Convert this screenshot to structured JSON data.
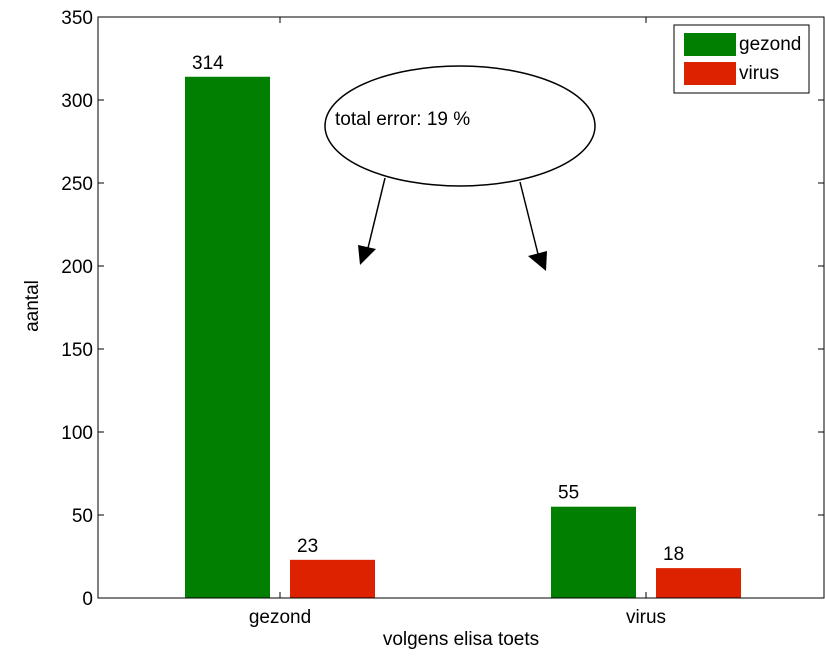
{
  "chart_data": {
    "type": "bar",
    "categories": [
      "gezond",
      "virus"
    ],
    "series": [
      {
        "name": "gezond",
        "values": [
          314,
          55
        ],
        "color": "#007f00"
      },
      {
        "name": "virus",
        "values": [
          23,
          18
        ],
        "color": "#dd2200"
      }
    ],
    "xlabel": "volgens elisa toets",
    "ylabel": "aantal",
    "ylim": [
      0,
      350
    ],
    "yticks": [
      0,
      50,
      100,
      150,
      200,
      250,
      300,
      350
    ],
    "grid": false,
    "legend_position": "top-right",
    "annotation": {
      "text": "total error: 19 %",
      "shape": "ellipse with two arrows pointing down"
    }
  }
}
